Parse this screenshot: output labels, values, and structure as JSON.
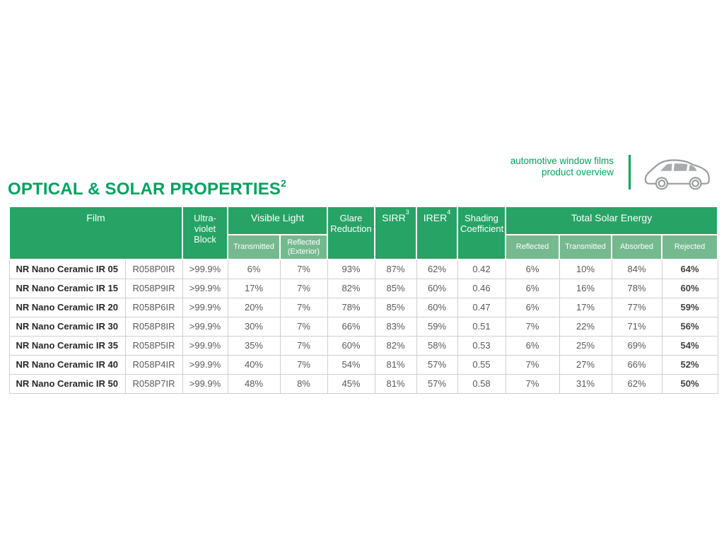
{
  "page": {
    "title": "OPTICAL & SOLAR PROPERTIES",
    "title_sup": "2"
  },
  "brand": {
    "line1": "automotive window films",
    "line2": "product overview",
    "car_icon": "car-outline-icon"
  },
  "colors": {
    "accent_green": "#00a25f",
    "header_green": "#27a365",
    "subheader_green": "#75b98f"
  },
  "table": {
    "headers": {
      "film": "Film",
      "uv_block": "Ultra-violet Block",
      "visible_light": "Visible Light",
      "vl_transmitted": "Transmitted",
      "vl_reflected": "Reflected (Exterior)",
      "glare_reduction": "Glare Reduction",
      "sirr": "SIRR",
      "sirr_sup": "3",
      "irer": "IRER",
      "irer_sup": "4",
      "shading_coefficient": "Shading Coefficient",
      "total_solar_energy": "Total Solar Energy",
      "tse_reflected": "Reflected",
      "tse_transmitted": "Transmitted",
      "tse_absorbed": "Absorbed",
      "tse_rejected": "Rejected"
    },
    "column_names": [
      "film-name-cell",
      "film-code-cell",
      "uv-block-cell",
      "vl-transmitted-cell",
      "vl-reflected-cell",
      "glare-reduction-cell",
      "sirr-cell",
      "irer-cell",
      "shading-coefficient-cell",
      "tse-reflected-cell",
      "tse-transmitted-cell",
      "tse-absorbed-cell",
      "tse-rejected-cell"
    ],
    "rows": [
      [
        "NR Nano Ceramic IR 05",
        "R058P0IR",
        ">99.9%",
        "6%",
        "7%",
        "93%",
        "87%",
        "62%",
        "0.42",
        "6%",
        "10%",
        "84%",
        "64%"
      ],
      [
        "NR Nano Ceramic IR 15",
        "R058P9IR",
        ">99.9%",
        "17%",
        "7%",
        "82%",
        "85%",
        "60%",
        "0.46",
        "6%",
        "16%",
        "78%",
        "60%"
      ],
      [
        "NR Nano Ceramic IR 20",
        "R058P6IR",
        ">99.9%",
        "20%",
        "7%",
        "78%",
        "85%",
        "60%",
        "0.47",
        "6%",
        "17%",
        "77%",
        "59%"
      ],
      [
        "NR Nano Ceramic IR 30",
        "R058P8IR",
        ">99.9%",
        "30%",
        "7%",
        "66%",
        "83%",
        "59%",
        "0.51",
        "7%",
        "22%",
        "71%",
        "56%"
      ],
      [
        "NR Nano Ceramic IR 35",
        "R058P5IR",
        ">99.9%",
        "35%",
        "7%",
        "60%",
        "82%",
        "58%",
        "0.53",
        "6%",
        "25%",
        "69%",
        "54%"
      ],
      [
        "NR Nano Ceramic IR 40",
        "R058P4IR",
        ">99.9%",
        "40%",
        "7%",
        "54%",
        "81%",
        "57%",
        "0.55",
        "7%",
        "27%",
        "66%",
        "52%"
      ],
      [
        "NR Nano Ceramic IR 50",
        "R058P7IR",
        ">99.9%",
        "48%",
        "8%",
        "45%",
        "81%",
        "57%",
        "0.58",
        "7%",
        "31%",
        "62%",
        "50%"
      ]
    ]
  }
}
